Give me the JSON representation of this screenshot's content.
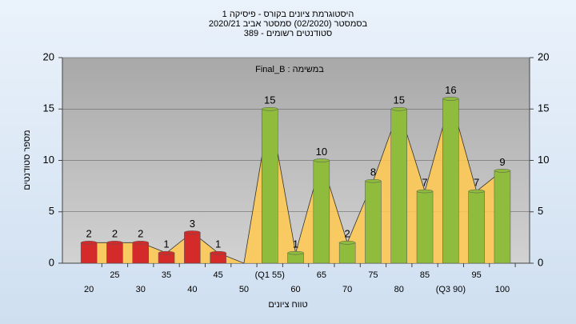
{
  "chart_data": {
    "type": "bar",
    "title": "היסטוגרמת ציונים בקורס - פיסיקה 1",
    "subtitle": "בסמסטר  (02/2020)  סמסטר אביב 2020/21",
    "subtitle2": "סטודנטים רשומים - 389",
    "annotation": "במשימה : Final_B",
    "xlabel": "טווח ציונים",
    "ylabel": "מספר סטודנטים",
    "categories": [
      "20",
      "25",
      "30",
      "35",
      "40",
      "45",
      "50",
      "(Q1 55)",
      "60",
      "65",
      "70",
      "75",
      "80",
      "85",
      "(Q3 90)",
      "95",
      "100"
    ],
    "values": [
      2,
      2,
      2,
      1,
      3,
      1,
      0,
      15,
      1,
      10,
      2,
      8,
      15,
      7,
      16,
      7,
      9
    ],
    "colors": [
      "#d42a2a",
      "#d42a2a",
      "#d42a2a",
      "#d42a2a",
      "#d42a2a",
      "#d42a2a",
      "#d42a2a",
      "#8fbc3c",
      "#8fbc3c",
      "#8fbc3c",
      "#8fbc3c",
      "#8fbc3c",
      "#8fbc3c",
      "#8fbc3c",
      "#8fbc3c",
      "#8fbc3c",
      "#8fbc3c"
    ],
    "area_color": "#ffc94d",
    "ylim": [
      0,
      20
    ],
    "yticks": [
      0,
      5,
      10,
      15,
      20
    ],
    "y2lim": [
      0,
      20
    ],
    "y2ticks": [
      0,
      5,
      10,
      15,
      20
    ],
    "grid": true
  }
}
